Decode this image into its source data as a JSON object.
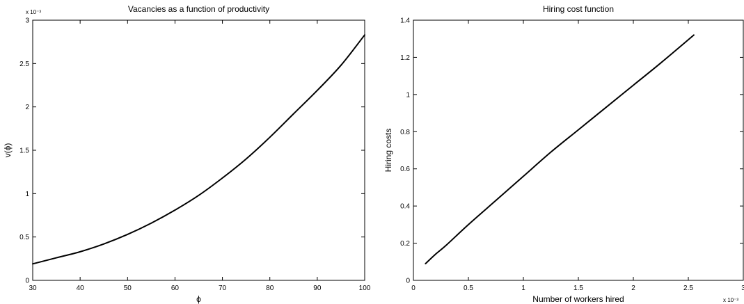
{
  "chart_data": [
    {
      "type": "line",
      "title": "Vacancies as a function of productivity",
      "xlabel": "ϕ",
      "ylabel": "v(ϕ)",
      "xlim": [
        30,
        100
      ],
      "ylim": [
        0,
        3
      ],
      "y_multiplier_label": "x 10⁻³",
      "x_ticks": [
        30,
        40,
        50,
        60,
        70,
        80,
        90,
        100
      ],
      "x_tick_labels": [
        "30",
        "40",
        "50",
        "60",
        "70",
        "80",
        "90",
        "100"
      ],
      "y_ticks": [
        0,
        0.5,
        1,
        1.5,
        2,
        2.5,
        3
      ],
      "y_tick_labels": [
        "0",
        "0.5",
        "1",
        "1.5",
        "2",
        "2.5",
        "3"
      ],
      "grid": false,
      "series": [
        {
          "x": [
            30,
            35,
            40,
            45,
            50,
            55,
            60,
            65,
            70,
            75,
            80,
            85,
            90,
            95,
            100
          ],
          "y": [
            0.19,
            0.26,
            0.33,
            0.42,
            0.53,
            0.66,
            0.81,
            0.98,
            1.18,
            1.4,
            1.65,
            1.92,
            2.19,
            2.48,
            2.83
          ],
          "color": "#000000"
        }
      ]
    },
    {
      "type": "line",
      "title": "Hiring cost function",
      "xlabel": "Number of workers hired",
      "ylabel": "Hiring costs",
      "xlim": [
        0,
        3
      ],
      "ylim": [
        0,
        1.4
      ],
      "x_multiplier_label": "x 10⁻³",
      "x_ticks": [
        0,
        0.5,
        1,
        1.5,
        2,
        2.5,
        3
      ],
      "x_tick_labels": [
        "0",
        "0.5",
        "1",
        "1.5",
        "2",
        "2.5",
        "3"
      ],
      "y_ticks": [
        0,
        0.2,
        0.4,
        0.6,
        0.8,
        1,
        1.2,
        1.4
      ],
      "y_tick_labels": [
        "0",
        "0.2",
        "0.4",
        "0.6",
        "0.8",
        "1",
        "1.2",
        "1.4"
      ],
      "grid": false,
      "series": [
        {
          "x": [
            0.11,
            0.2,
            0.3,
            0.5,
            0.75,
            1.0,
            1.25,
            1.5,
            1.75,
            2.0,
            2.25,
            2.55
          ],
          "y": [
            0.09,
            0.14,
            0.19,
            0.3,
            0.43,
            0.56,
            0.69,
            0.81,
            0.93,
            1.05,
            1.17,
            1.32
          ],
          "color": "#000000"
        }
      ]
    }
  ]
}
